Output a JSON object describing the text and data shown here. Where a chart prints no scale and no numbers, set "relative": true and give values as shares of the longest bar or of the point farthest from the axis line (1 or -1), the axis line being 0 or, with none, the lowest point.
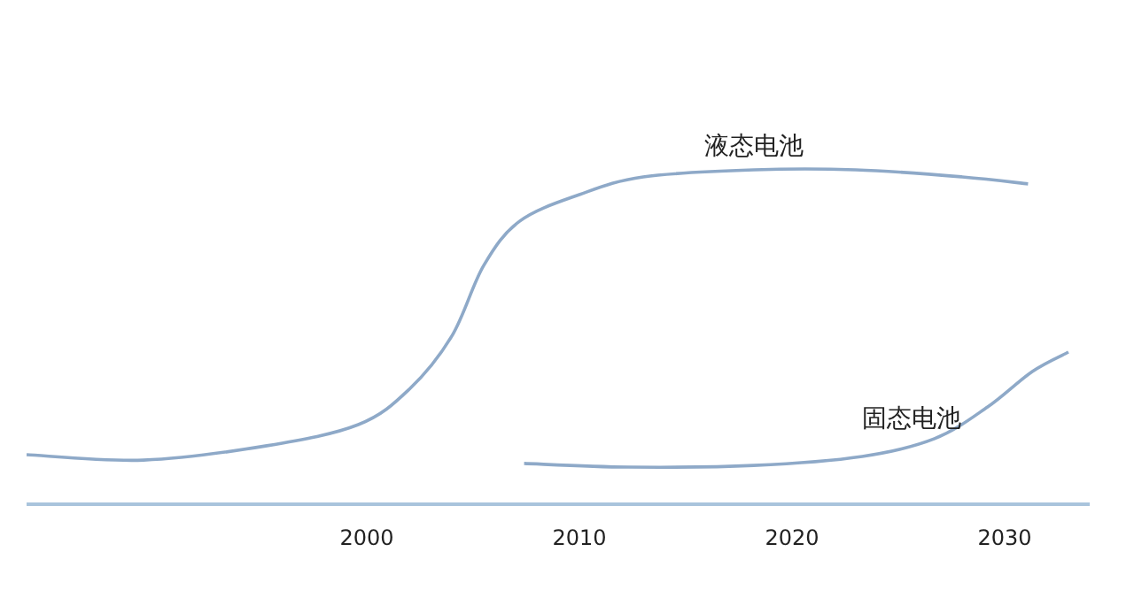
{
  "chart_data": {
    "type": "line",
    "relative": true,
    "xlim": [
      1984,
      2034
    ],
    "xticks": [
      2000,
      2010,
      2020,
      2030
    ],
    "grid": false,
    "marker": "none",
    "line_style": "solid",
    "series": [
      {
        "name": "液态电池",
        "color": "#8ea9c8",
        "x": [
          1984,
          1989.5,
          1995.3,
          1999.6,
          2002,
          2004,
          2005.5,
          2007.2,
          2010,
          2013,
          2018.2,
          2023,
          2028,
          2031.1
        ],
        "values": [
          0.148,
          0.132,
          0.175,
          0.238,
          0.344,
          0.503,
          0.714,
          0.847,
          0.926,
          0.979,
          1,
          1,
          0.979,
          0.958
        ]
      },
      {
        "name": "固态电池",
        "color": "#8ea9c8",
        "x": [
          2007.4,
          2012.3,
          2018.2,
          2023.3,
          2026.7,
          2029.2,
          2031.3,
          2033
        ],
        "values": [
          0.122,
          0.111,
          0.116,
          0.143,
          0.196,
          0.291,
          0.397,
          0.455
        ]
      }
    ]
  }
}
